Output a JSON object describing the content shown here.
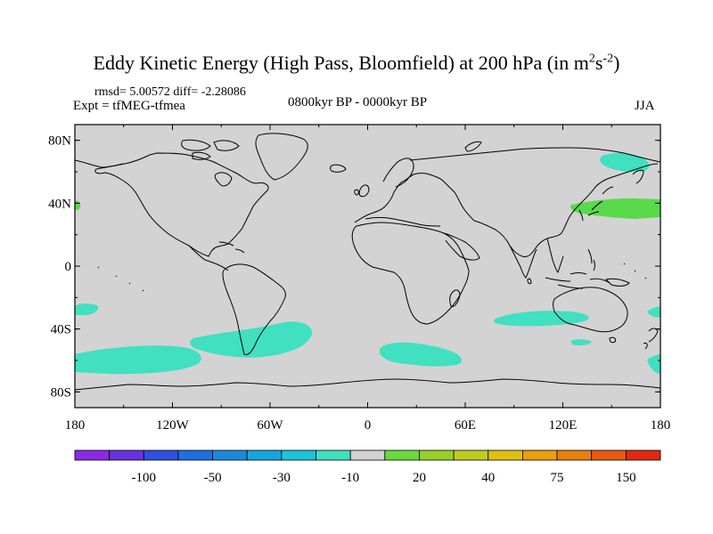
{
  "title": {
    "main": "Eddy Kinetic Energy (High Pass, Bloomfield) at 200 hPa (in m",
    "sup1": "2",
    "mid": "s",
    "sup2": "-2",
    "end": ")"
  },
  "stats": "rmsd= 5.00572 diff= -2.28086",
  "experiment": "Expt = tfMEG-tfmea",
  "period": "0800kyr BP - 0000kyr BP",
  "season": "JJA",
  "colors": {
    "land_background": "#d3d3d3",
    "cyan_anomaly": "#40e0c0",
    "green_anomaly": "#5ad94a",
    "coastline": "#000000"
  },
  "map": {
    "x_ticks": [
      "180",
      "120W",
      "60W",
      "0",
      "60E",
      "120E",
      "180"
    ],
    "y_ticks": [
      "80N",
      "40N",
      "0",
      "40S",
      "80S"
    ]
  },
  "colorbar": {
    "colors": [
      "#8a2be2",
      "#6a30e0",
      "#3050e0",
      "#1e70e0",
      "#1a8ad8",
      "#16a6dc",
      "#1cc4d8",
      "#40e0c0",
      "#d3d3d3",
      "#6ad940",
      "#98d028",
      "#c0cc20",
      "#e0c010",
      "#e8a010",
      "#e88010",
      "#e85a10",
      "#e02a10"
    ],
    "labels": [
      "-100",
      "-50",
      "-30",
      "-10",
      "20",
      "40",
      "75",
      "150"
    ]
  }
}
